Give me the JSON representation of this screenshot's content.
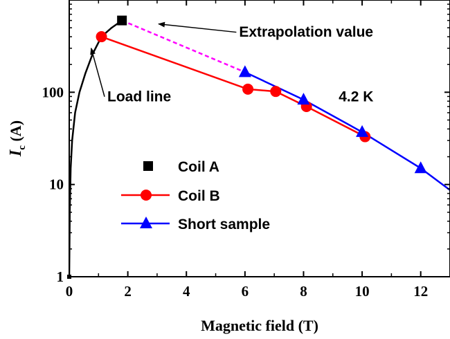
{
  "chart_data": {
    "type": "line",
    "xlabel": "Magnetic field (T)",
    "ylabel_main": "I",
    "ylabel_sub": "c",
    "ylabel_unit": " (A)",
    "xlim": [
      0,
      13
    ],
    "ylim": [
      1,
      1000
    ],
    "y_scale": "log",
    "grid": false,
    "x_ticks": [
      0,
      2,
      4,
      6,
      8,
      10,
      12
    ],
    "y_ticks": [
      1,
      10,
      100
    ],
    "legend_position": "lower-left",
    "series": [
      {
        "name": "Coil A",
        "color": "#000000",
        "marker": "square",
        "line": false,
        "points": [
          [
            1.8,
            600
          ]
        ]
      },
      {
        "name": "Coil B",
        "color": "#ff0000",
        "marker": "circle",
        "line": true,
        "points": [
          [
            1.1,
            400
          ],
          [
            6.1,
            108
          ],
          [
            7.05,
            102
          ],
          [
            8.1,
            70
          ],
          [
            10.1,
            33
          ]
        ]
      },
      {
        "name": "Short sample",
        "color": "#0000ff",
        "marker": "triangle",
        "line": true,
        "points": [
          [
            6.0,
            165
          ],
          [
            8.0,
            83
          ],
          [
            10.0,
            37
          ],
          [
            12.0,
            15
          ],
          [
            13.0,
            8.7
          ]
        ],
        "marker_points": [
          [
            6.0,
            165
          ],
          [
            8.0,
            83
          ],
          [
            10.0,
            37
          ],
          [
            12.0,
            15
          ]
        ]
      }
    ],
    "load_line": {
      "color": "#000000",
      "points": [
        [
          0.0,
          1
        ],
        [
          0.02,
          5
        ],
        [
          0.05,
          15
        ],
        [
          0.1,
          30
        ],
        [
          0.2,
          60
        ],
        [
          0.35,
          100
        ],
        [
          0.55,
          160
        ],
        [
          0.8,
          260
        ],
        [
          1.1,
          400
        ],
        [
          1.45,
          500
        ],
        [
          1.8,
          600
        ]
      ]
    },
    "extrapolation_line": {
      "color": "#ff00ff",
      "style": "dashed",
      "points": [
        [
          1.8,
          600
        ],
        [
          6.0,
          165
        ]
      ]
    },
    "annotations": [
      {
        "id": "extrapolation",
        "text": "Extrapolation value",
        "x": 5.8,
        "y": 400,
        "arrow_to": [
          3.05,
          550
        ]
      },
      {
        "id": "load-line",
        "text": "Load line",
        "x": 1.3,
        "y": 80,
        "arrow_to": [
          0.75,
          300
        ]
      },
      {
        "id": "temperature",
        "text": "4.2 K",
        "x": 9.2,
        "y": 80
      }
    ]
  }
}
